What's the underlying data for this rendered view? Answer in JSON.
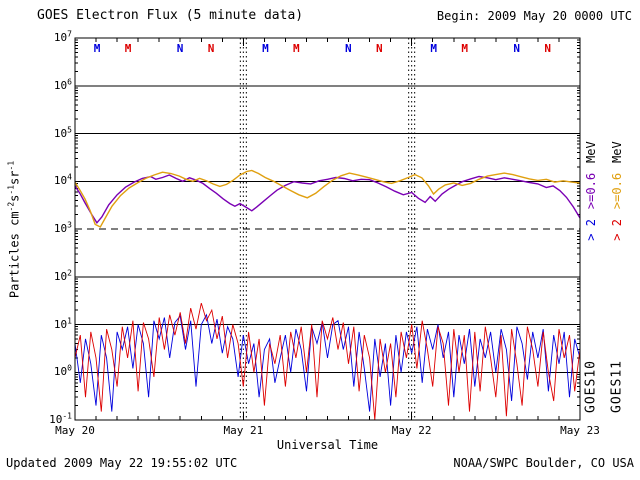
{
  "header": {
    "begin": "Begin: 2009 May 20 0000 UTC"
  },
  "footer": {
    "updated": "Updated 2009 May 22 19:55:02 UTC",
    "credit": "NOAA/SWPC Boulder, CO USA"
  },
  "legend": {
    "goes10": {
      "gt2": "> 2",
      "ge06": ">=0.6",
      "mev": "MeV",
      "name": "GOES10"
    },
    "goes11": {
      "gt2": "> 2",
      "ge06": ">=0.6",
      "mev": "MeV",
      "name": "GOES11"
    }
  },
  "colors": {
    "goes10_gt2": "#0000dd",
    "goes11_gt2": "#dd0000",
    "goes10_ge06": "#7a00b4",
    "goes11_ge06": "#e0a010",
    "axis": "#000000",
    "background": "#ffffff"
  },
  "chart_data": {
    "type": "line",
    "title": "GOES Electron Flux (5 minute data)",
    "xlabel": "Universal Time",
    "ylabel_segments": [
      [
        "Particles cm",
        ""
      ],
      [
        "-2",
        "sup"
      ],
      [
        "s",
        ""
      ],
      [
        "-1",
        "sup"
      ],
      [
        "sr",
        ""
      ],
      [
        "-1",
        "sup"
      ]
    ],
    "x_ticks": [
      "May 20",
      "May 21",
      "May 22",
      "May 23"
    ],
    "x_range_days": [
      0,
      3
    ],
    "x_minor_step_days": 0.125,
    "y_log_range": [
      -1,
      7
    ],
    "y_tick_exponents": [
      7,
      6,
      5,
      4,
      3,
      2,
      1,
      0,
      -1
    ],
    "y_unit": "Particles cm^-2 s^-1 sr^-1",
    "dashed_gridline_exponent": 3,
    "day_gridlines": [
      1,
      2
    ],
    "grid": true,
    "legend_position": "right-rotated",
    "markers": [
      {
        "t": "M",
        "x": 0.131,
        "c": "#0000dd"
      },
      {
        "t": "M",
        "x": 0.315,
        "c": "#dd0000"
      },
      {
        "t": "N",
        "x": 0.624,
        "c": "#0000dd"
      },
      {
        "t": "N",
        "x": 0.808,
        "c": "#dd0000"
      },
      {
        "t": "M",
        "x": 1.131,
        "c": "#0000dd"
      },
      {
        "t": "M",
        "x": 1.315,
        "c": "#dd0000"
      },
      {
        "t": "N",
        "x": 1.624,
        "c": "#0000dd"
      },
      {
        "t": "N",
        "x": 1.808,
        "c": "#dd0000"
      },
      {
        "t": "M",
        "x": 2.131,
        "c": "#0000dd"
      },
      {
        "t": "M",
        "x": 2.315,
        "c": "#dd0000"
      },
      {
        "t": "N",
        "x": 2.624,
        "c": "#0000dd"
      },
      {
        "t": "N",
        "x": 2.808,
        "c": "#dd0000"
      }
    ],
    "series": [
      {
        "name": "GOES10 >2 MeV",
        "color": "#0000dd",
        "width": 0.9,
        "x_start": 0,
        "x_step": 0.03125,
        "values": [
          4,
          0.6,
          5,
          1.5,
          0.2,
          6,
          2,
          0.15,
          7,
          3,
          9,
          1.2,
          10,
          4,
          0.3,
          12,
          5,
          14,
          2,
          11,
          15,
          3,
          12,
          0.5,
          10,
          16,
          4,
          13,
          2.5,
          9,
          5,
          0.8,
          6,
          1.5,
          4,
          0.3,
          3,
          5,
          0.6,
          2,
          6,
          1,
          8,
          3,
          0.4,
          9,
          4,
          11,
          2,
          10,
          12,
          3,
          9,
          0.5,
          7,
          1.2,
          0.15,
          5,
          0.8,
          4,
          0.2,
          6,
          1,
          7,
          2.5,
          9,
          0.6,
          8,
          3,
          10,
          2,
          7,
          0.3,
          6,
          1.5,
          8,
          0.5,
          5,
          2,
          7,
          1,
          8,
          3,
          0.25,
          9,
          4,
          0.7,
          7,
          2,
          8,
          0.4,
          6,
          1.5,
          7,
          0.3,
          5,
          2
        ]
      },
      {
        "name": "GOES11 >2 MeV",
        "color": "#dd0000",
        "width": 0.9,
        "x_start": 0,
        "x_step": 0.03125,
        "values": [
          2,
          6,
          0.3,
          7,
          2,
          0.15,
          8,
          3,
          0.5,
          9,
          2,
          12,
          0.4,
          11,
          5,
          0.8,
          14,
          3,
          16,
          6,
          18,
          4,
          22,
          8,
          28,
          12,
          20,
          5,
          15,
          2,
          10,
          4,
          0.5,
          7,
          1,
          5,
          0.2,
          4,
          1.5,
          6,
          0.5,
          7,
          2,
          9,
          1,
          10,
          0.3,
          12,
          5,
          14,
          3,
          11,
          1.5,
          9,
          0.4,
          6,
          2,
          0.1,
          5,
          1,
          4,
          0.3,
          7,
          2,
          10,
          1.2,
          12,
          3,
          0.5,
          9,
          4,
          0.2,
          8,
          1,
          6,
          0.15,
          7,
          0.4,
          9,
          2,
          0.3,
          6,
          0.12,
          8,
          1.5,
          0.2,
          9,
          3,
          0.5,
          7,
          1,
          0.25,
          8,
          2,
          6,
          0.4,
          3
        ]
      },
      {
        "name": "GOES10 >=0.6 MeV",
        "color": "#7a00b4",
        "width": 1.4,
        "points": [
          [
            0.0,
            8000
          ],
          [
            0.03,
            5500
          ],
          [
            0.06,
            3500
          ],
          [
            0.1,
            2000
          ],
          [
            0.13,
            1350
          ],
          [
            0.16,
            1800
          ],
          [
            0.2,
            3200
          ],
          [
            0.25,
            5200
          ],
          [
            0.3,
            7500
          ],
          [
            0.35,
            9500
          ],
          [
            0.4,
            11500
          ],
          [
            0.45,
            12500
          ],
          [
            0.48,
            11000
          ],
          [
            0.52,
            12000
          ],
          [
            0.56,
            13500
          ],
          [
            0.6,
            11500
          ],
          [
            0.64,
            10000
          ],
          [
            0.68,
            11800
          ],
          [
            0.72,
            10500
          ],
          [
            0.76,
            9000
          ],
          [
            0.8,
            7000
          ],
          [
            0.84,
            5600
          ],
          [
            0.88,
            4300
          ],
          [
            0.92,
            3400
          ],
          [
            0.95,
            3000
          ],
          [
            0.98,
            3400
          ],
          [
            1.02,
            2800
          ],
          [
            1.05,
            2400
          ],
          [
            1.08,
            2900
          ],
          [
            1.12,
            3800
          ],
          [
            1.16,
            5000
          ],
          [
            1.2,
            6500
          ],
          [
            1.25,
            8200
          ],
          [
            1.3,
            9800
          ],
          [
            1.35,
            9200
          ],
          [
            1.4,
            8800
          ],
          [
            1.45,
            10200
          ],
          [
            1.5,
            11000
          ],
          [
            1.55,
            12000
          ],
          [
            1.6,
            11400
          ],
          [
            1.65,
            10200
          ],
          [
            1.7,
            11000
          ],
          [
            1.75,
            10800
          ],
          [
            1.8,
            9200
          ],
          [
            1.85,
            7600
          ],
          [
            1.9,
            6200
          ],
          [
            1.95,
            5200
          ],
          [
            2.0,
            5800
          ],
          [
            2.04,
            4400
          ],
          [
            2.08,
            3600
          ],
          [
            2.11,
            4800
          ],
          [
            2.14,
            3800
          ],
          [
            2.18,
            5400
          ],
          [
            2.22,
            6800
          ],
          [
            2.26,
            8200
          ],
          [
            2.3,
            9800
          ],
          [
            2.35,
            11200
          ],
          [
            2.4,
            12600
          ],
          [
            2.45,
            11800
          ],
          [
            2.5,
            10800
          ],
          [
            2.55,
            11800
          ],
          [
            2.6,
            11000
          ],
          [
            2.65,
            10200
          ],
          [
            2.7,
            9400
          ],
          [
            2.75,
            8800
          ],
          [
            2.8,
            7400
          ],
          [
            2.84,
            8000
          ],
          [
            2.88,
            6400
          ],
          [
            2.92,
            4600
          ],
          [
            2.96,
            2900
          ],
          [
            3.0,
            1700
          ]
        ]
      },
      {
        "name": "GOES11 >=0.6 MeV",
        "color": "#e0a010",
        "width": 1.4,
        "points": [
          [
            0.0,
            9500
          ],
          [
            0.03,
            6500
          ],
          [
            0.06,
            4200
          ],
          [
            0.09,
            2400
          ],
          [
            0.12,
            1250
          ],
          [
            0.15,
            1100
          ],
          [
            0.18,
            1700
          ],
          [
            0.22,
            3000
          ],
          [
            0.27,
            5000
          ],
          [
            0.32,
            7200
          ],
          [
            0.37,
            9200
          ],
          [
            0.42,
            11500
          ],
          [
            0.47,
            13500
          ],
          [
            0.52,
            15500
          ],
          [
            0.57,
            14500
          ],
          [
            0.62,
            12800
          ],
          [
            0.66,
            11000
          ],
          [
            0.7,
            10000
          ],
          [
            0.74,
            11500
          ],
          [
            0.78,
            10200
          ],
          [
            0.82,
            8800
          ],
          [
            0.86,
            7800
          ],
          [
            0.9,
            8600
          ],
          [
            0.94,
            10500
          ],
          [
            0.98,
            13500
          ],
          [
            1.02,
            16000
          ],
          [
            1.05,
            16800
          ],
          [
            1.09,
            14500
          ],
          [
            1.13,
            12000
          ],
          [
            1.18,
            10000
          ],
          [
            1.23,
            8000
          ],
          [
            1.28,
            6400
          ],
          [
            1.33,
            5200
          ],
          [
            1.38,
            4500
          ],
          [
            1.43,
            5600
          ],
          [
            1.48,
            7800
          ],
          [
            1.53,
            10500
          ],
          [
            1.58,
            13000
          ],
          [
            1.63,
            14800
          ],
          [
            1.68,
            13600
          ],
          [
            1.73,
            12200
          ],
          [
            1.78,
            11000
          ],
          [
            1.83,
            9800
          ],
          [
            1.88,
            9000
          ],
          [
            1.93,
            10200
          ],
          [
            1.98,
            12000
          ],
          [
            2.02,
            13800
          ],
          [
            2.06,
            11800
          ],
          [
            2.1,
            8000
          ],
          [
            2.13,
            5400
          ],
          [
            2.16,
            6800
          ],
          [
            2.2,
            8400
          ],
          [
            2.25,
            9200
          ],
          [
            2.3,
            8200
          ],
          [
            2.35,
            9000
          ],
          [
            2.4,
            11000
          ],
          [
            2.45,
            12800
          ],
          [
            2.5,
            13800
          ],
          [
            2.55,
            14800
          ],
          [
            2.6,
            13800
          ],
          [
            2.65,
            12400
          ],
          [
            2.7,
            11200
          ],
          [
            2.75,
            10400
          ],
          [
            2.8,
            11000
          ],
          [
            2.85,
            9600
          ],
          [
            2.9,
            10200
          ],
          [
            2.95,
            9600
          ],
          [
            3.0,
            9200
          ]
        ]
      }
    ]
  }
}
